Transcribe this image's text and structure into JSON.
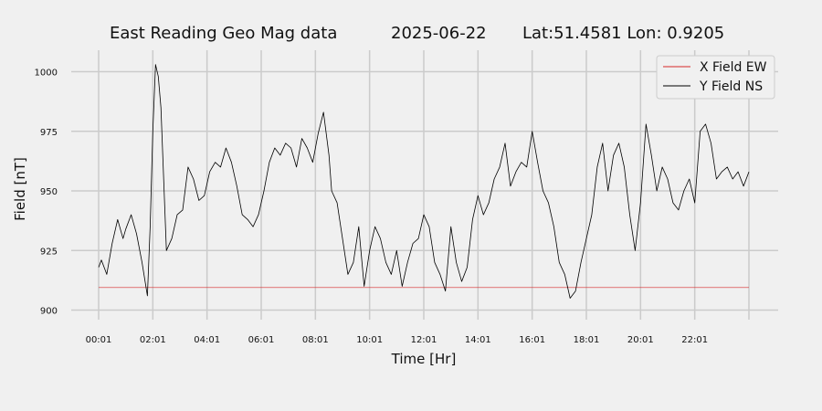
{
  "chart_data": {
    "type": "line",
    "title_parts": [
      "East Reading Geo Mag data",
      "2025-06-22",
      "Lat:51.4581  Lon: 0.9205"
    ],
    "xlabel": "Time  [Hr]",
    "ylabel": "Field  [nT]",
    "xlim": [
      0,
      24
    ],
    "ylim": [
      896,
      1009
    ],
    "x_ticks": [
      0,
      2,
      4,
      6,
      8,
      10,
      12,
      14,
      16,
      18,
      20,
      22,
      24
    ],
    "x_tick_labels": [
      "00:01",
      "02:01",
      "04:01",
      "06:01",
      "08:01",
      "10:01",
      "12:01",
      "14:01",
      "16:01",
      "18:01",
      "20:01",
      "22:01",
      ""
    ],
    "y_ticks": [
      900,
      925,
      950,
      975,
      1000
    ],
    "y_tick_labels": [
      "900",
      "925",
      "950",
      "975",
      "1000"
    ],
    "grid": true,
    "legend_position": "top-right",
    "series": [
      {
        "name": "X Field EW",
        "color": "#d62728",
        "x": [
          0,
          24
        ],
        "y": [
          909.5,
          909.5
        ]
      },
      {
        "name": "Y Field NS",
        "color": "#000000",
        "x": [
          0,
          0.1,
          0.3,
          0.5,
          0.7,
          0.9,
          1.0,
          1.2,
          1.4,
          1.6,
          1.8,
          1.9,
          2.0,
          2.1,
          2.2,
          2.3,
          2.5,
          2.7,
          2.9,
          3.1,
          3.3,
          3.5,
          3.7,
          3.9,
          4.1,
          4.3,
          4.5,
          4.7,
          4.9,
          5.1,
          5.3,
          5.5,
          5.7,
          5.9,
          6.1,
          6.3,
          6.5,
          6.7,
          6.9,
          7.1,
          7.3,
          7.5,
          7.7,
          7.9,
          8.1,
          8.3,
          8.5,
          8.6,
          8.8,
          9.0,
          9.2,
          9.4,
          9.6,
          9.8,
          10.0,
          10.2,
          10.4,
          10.6,
          10.8,
          11.0,
          11.2,
          11.4,
          11.6,
          11.8,
          12.0,
          12.2,
          12.4,
          12.6,
          12.8,
          13.0,
          13.2,
          13.4,
          13.6,
          13.8,
          14.0,
          14.2,
          14.4,
          14.6,
          14.8,
          15.0,
          15.2,
          15.4,
          15.6,
          15.8,
          16.0,
          16.2,
          16.4,
          16.6,
          16.8,
          17.0,
          17.2,
          17.4,
          17.6,
          17.8,
          18.0,
          18.2,
          18.4,
          18.6,
          18.8,
          19.0,
          19.2,
          19.4,
          19.6,
          19.8,
          20.0,
          20.2,
          20.4,
          20.6,
          20.8,
          21.0,
          21.2,
          21.4,
          21.6,
          21.8,
          22.0,
          22.2,
          22.4,
          22.6,
          22.8,
          23.0,
          23.2,
          23.4,
          23.6,
          23.8,
          24.0
        ],
        "y": [
          918,
          921,
          915,
          928,
          938,
          930,
          934,
          940,
          932,
          920,
          906,
          935,
          975,
          1003,
          998,
          985,
          925,
          930,
          940,
          942,
          960,
          955,
          946,
          948,
          958,
          962,
          960,
          968,
          962,
          952,
          940,
          938,
          935,
          940,
          950,
          962,
          968,
          965,
          970,
          968,
          960,
          972,
          968,
          962,
          974,
          983,
          965,
          950,
          945,
          930,
          915,
          920,
          935,
          910,
          925,
          935,
          930,
          920,
          915,
          925,
          910,
          920,
          928,
          930,
          940,
          935,
          920,
          915,
          908,
          935,
          920,
          912,
          918,
          938,
          948,
          940,
          945,
          955,
          960,
          970,
          952,
          958,
          962,
          960,
          975,
          962,
          950,
          945,
          935,
          920,
          915,
          905,
          908,
          920,
          930,
          940,
          960,
          970,
          950,
          965,
          970,
          960,
          940,
          925,
          945,
          978,
          965,
          950,
          960,
          955,
          945,
          942,
          950,
          955,
          945,
          975,
          978,
          970,
          955,
          958,
          960,
          955,
          958,
          952,
          958
        ]
      }
    ]
  }
}
